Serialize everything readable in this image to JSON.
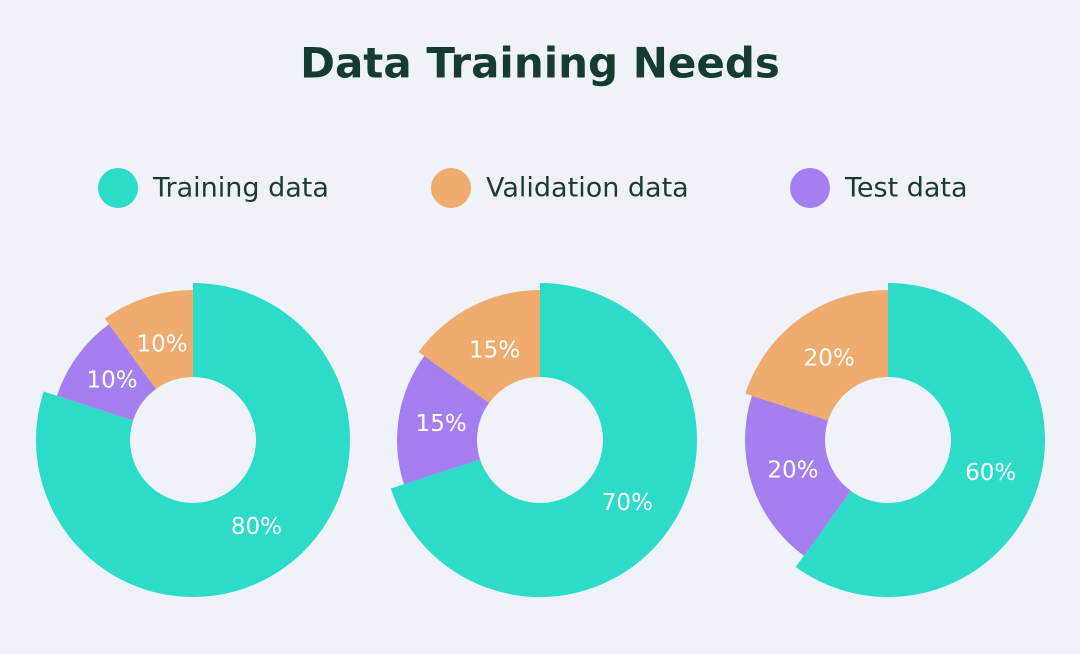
{
  "title": "Data Training Needs",
  "chart_data": [
    {
      "type": "pie",
      "categories": [
        "Training data",
        "Validation data",
        "Test data"
      ],
      "values": [
        80,
        10,
        10
      ],
      "value_labels": [
        "80%",
        "10%",
        "10%"
      ],
      "colors": [
        "#2ddbc9",
        "#f0ab6e",
        "#a57ff0"
      ],
      "donut": true
    },
    {
      "type": "pie",
      "categories": [
        "Training data",
        "Validation data",
        "Test data"
      ],
      "values": [
        70,
        15,
        15
      ],
      "value_labels": [
        "70%",
        "15%",
        "15%"
      ],
      "colors": [
        "#2ddbc9",
        "#f0ab6e",
        "#a57ff0"
      ],
      "donut": true
    },
    {
      "type": "pie",
      "categories": [
        "Training data",
        "Validation data",
        "Test data"
      ],
      "values": [
        60,
        20,
        20
      ],
      "value_labels": [
        "60%",
        "20%",
        "20%"
      ],
      "colors": [
        "#2ddbc9",
        "#f0ab6e",
        "#a57ff0"
      ],
      "donut": true
    }
  ]
}
